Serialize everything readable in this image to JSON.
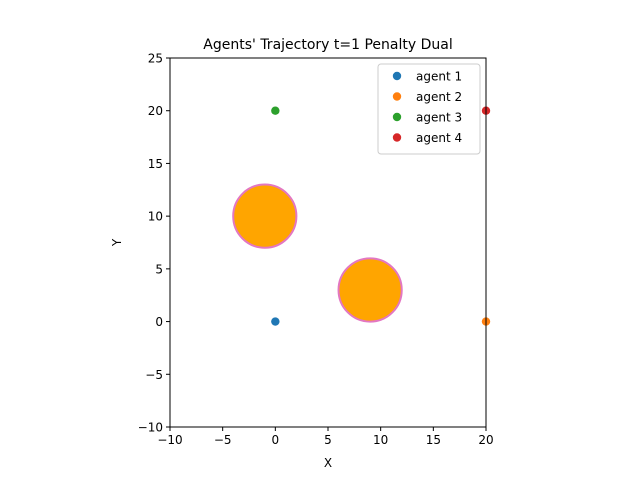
{
  "chart_data": {
    "type": "scatter",
    "title": "Agents' Trajectory t=1 Penalty Dual",
    "xlabel": "X",
    "ylabel": "Y",
    "xlim": [
      -10,
      20
    ],
    "ylim": [
      -10,
      25
    ],
    "xticks": [
      -10,
      -5,
      0,
      5,
      10,
      15,
      20
    ],
    "yticks": [
      -10,
      -5,
      0,
      5,
      10,
      15,
      20,
      25
    ],
    "xtick_labels": [
      "−10",
      "−5",
      "0",
      "5",
      "10",
      "15",
      "20"
    ],
    "ytick_labels": [
      "−10",
      "−5",
      "0",
      "5",
      "10",
      "15",
      "20",
      "25"
    ],
    "grid": false,
    "legend_position": "top-right",
    "series": [
      {
        "name": "agent 1",
        "color": "#1f77b4",
        "points": [
          [
            0,
            0
          ]
        ]
      },
      {
        "name": "agent 2",
        "color": "#ff7f0e",
        "points": [
          [
            20,
            0
          ]
        ]
      },
      {
        "name": "agent 3",
        "color": "#2ca02c",
        "points": [
          [
            0,
            20
          ]
        ]
      },
      {
        "name": "agent 4",
        "color": "#d62728",
        "points": [
          [
            20,
            20
          ]
        ]
      }
    ],
    "obstacles": [
      {
        "center": [
          -1,
          10
        ],
        "radius": 3,
        "fill": "#ffa500",
        "edge": "#e377c2"
      },
      {
        "center": [
          9,
          3
        ],
        "radius": 3,
        "fill": "#ffa500",
        "edge": "#e377c2"
      }
    ]
  }
}
